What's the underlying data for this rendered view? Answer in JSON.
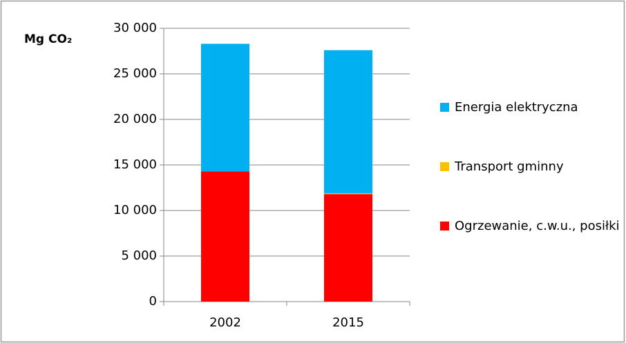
{
  "chart_data": {
    "type": "stacked_bar",
    "ylabel": "Mg CO₂",
    "categories": [
      "2002",
      "2015"
    ],
    "series": [
      {
        "name": "Ogrzewanie, c.w.u., posiłki",
        "color": "#ff0000",
        "values": [
          14300,
          11800
        ]
      },
      {
        "name": "Transport gminny",
        "color": "#ffc000",
        "values": [
          0,
          100
        ]
      },
      {
        "name": "Energia elektryczna",
        "color": "#00b0f0",
        "values": [
          14000,
          15700
        ]
      }
    ],
    "ylim": [
      0,
      30000
    ],
    "yticks": [
      0,
      {
        "value": 5000,
        "label": "5 000"
      },
      {
        "value": 10000,
        "label": "10 000"
      },
      {
        "value": 15000,
        "label": "15 000"
      },
      {
        "value": 20000,
        "label": "20 000"
      },
      {
        "value": 25000,
        "label": "25 000"
      },
      {
        "value": 30000,
        "label": "30 000"
      }
    ],
    "grid": true,
    "legend": "right"
  }
}
